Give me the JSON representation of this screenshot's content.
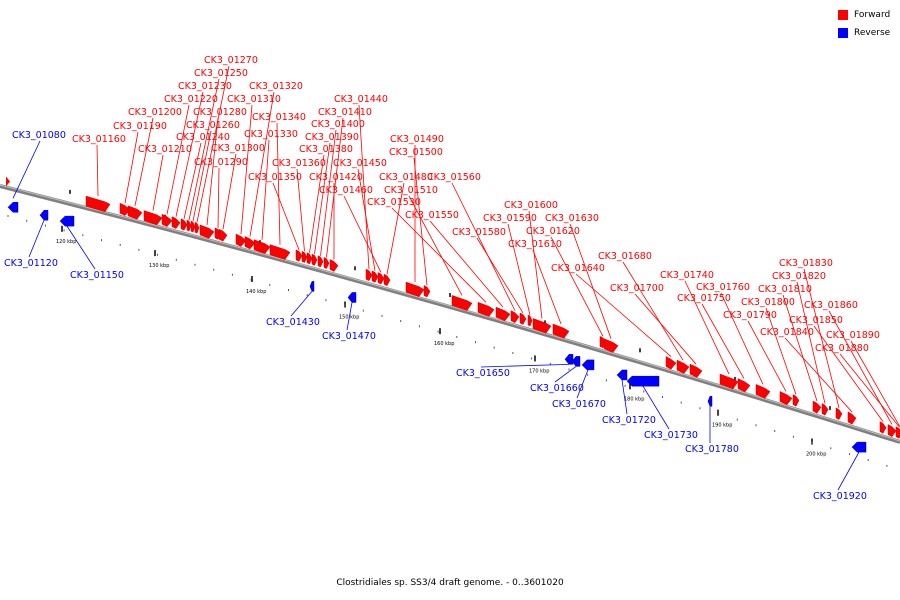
{
  "legend": {
    "forward_label": "Forward",
    "forward_color": "#ff0000",
    "reverse_label": "Reverse",
    "reverse_color": "#0000ff"
  },
  "caption": "Clostridiales sp. SS3/4 draft genome. - 0..3601020",
  "ticks": [
    "120 kbp",
    "130 kbp",
    "140 kbp",
    "150 kbp",
    "160 kbp",
    "170 kbp",
    "180 kbp",
    "190 kbp",
    "200 kbp"
  ],
  "forward_genes": [
    "CK3_01160",
    "CK3_01190",
    "CK3_01200",
    "CK3_01210",
    "CK3_01220",
    "CK3_01230",
    "CK3_01240",
    "CK3_01250",
    "CK3_01260",
    "CK3_01270",
    "CK3_01280",
    "CK3_01290",
    "CK3_01300",
    "CK3_01310",
    "CK3_01320",
    "CK3_01330",
    "CK3_01340",
    "CK3_01350",
    "CK3_01360",
    "CK3_01380",
    "CK3_01390",
    "CK3_01400",
    "CK3_01410",
    "CK3_01420",
    "CK3_01440",
    "CK3_01450",
    "CK3_01460",
    "CK3_01480",
    "CK3_01490",
    "CK3_01500",
    "CK3_01510",
    "CK3_01530",
    "CK3_01550",
    "CK3_01560",
    "CK3_01580",
    "CK3_01590",
    "CK3_01600",
    "CK3_01610",
    "CK3_01620",
    "CK3_01630",
    "CK3_01640",
    "CK3_01680",
    "CK3_01700",
    "CK3_01740",
    "CK3_01750",
    "CK3_01760",
    "CK3_01790",
    "CK3_01800",
    "CK3_01810",
    "CK3_01820",
    "CK3_01830",
    "CK3_01840",
    "CK3_01850",
    "CK3_01860",
    "CK3_01880",
    "CK3_01890"
  ],
  "reverse_genes": [
    "CK3_01080",
    "CK3_01120",
    "CK3_01150",
    "CK3_01430",
    "CK3_01470",
    "CK3_01650",
    "CK3_01660",
    "CK3_01670",
    "CK3_01720",
    "CK3_01730",
    "CK3_01780",
    "CK3_01920"
  ]
}
